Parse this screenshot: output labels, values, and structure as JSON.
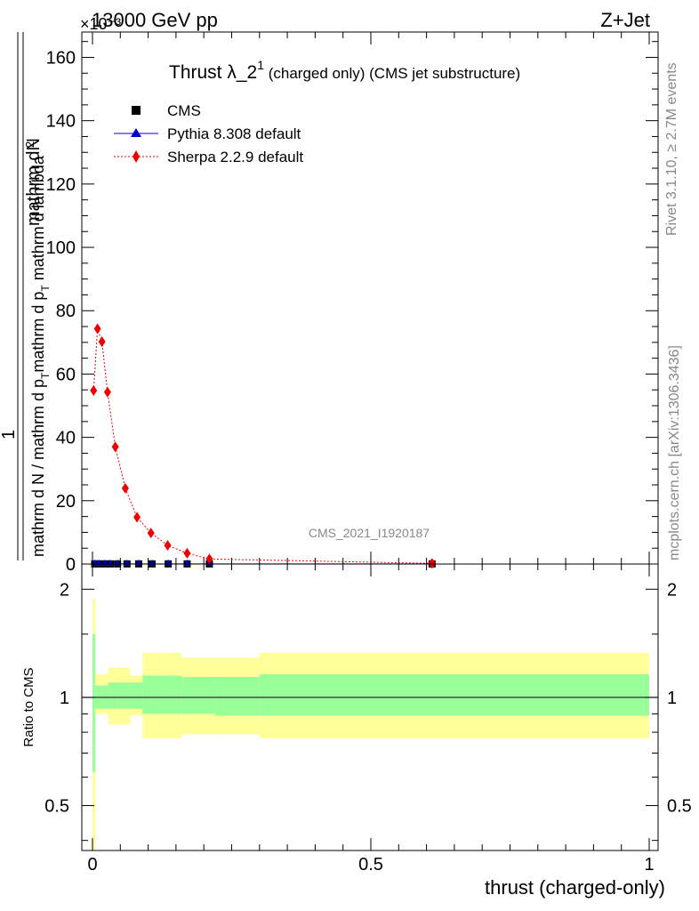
{
  "header": {
    "energy": "13000 GeV pp",
    "process": "Z+Jet",
    "exponent": "×10⁻³"
  },
  "side_labels": {
    "rivet": "Rivet 3.1.10, ≥ 2.7M events",
    "mcplots": "mcplots.cern.ch [arXiv:1306.3436]"
  },
  "watermark": "CMS_2021_I1920187",
  "colors": {
    "cms": "#000000",
    "pythia": "#0000cc",
    "sherpa": "#ee0000",
    "band_inner": "#99ff99",
    "band_outer": "#ffff99"
  },
  "chart_data": [
    {
      "type": "scatter",
      "title_main": "Thrust λ_2",
      "title_sup": "1",
      "title_rest": " (charged only) (CMS jet substructure)",
      "ylabel": "1/(mathrm d N / mathrm d p_T) · mathrm d²N / (mathrm d p_T mathrm d lambda)",
      "ylabel_numerator": "mathrm d²N",
      "ylabel_num_sup": "2",
      "ylabel_num_text": "mathrm dN",
      "ylabel_denominator": "mathrm d N / mathrm d p_T mathrm d p_T mathrm d lambda",
      "ylabel_den_parts": [
        "mathrm d N / mathrm d p",
        "T",
        "mathrm d p",
        "T",
        " mathrm d lambda"
      ],
      "ylabel_one": "1",
      "xlim": [
        0,
        1
      ],
      "ylim": [
        0,
        168
      ],
      "y_ticks": [
        0,
        20,
        40,
        60,
        80,
        100,
        120,
        140,
        160
      ],
      "legend_position": "top-left",
      "series": [
        {
          "name": "CMS",
          "marker": "square",
          "x": [
            0.004,
            0.012,
            0.022,
            0.032,
            0.045,
            0.062,
            0.083,
            0.107,
            0.136,
            0.17,
            0.21,
            0.61
          ],
          "values": [
            0.05,
            0.05,
            0.05,
            0.05,
            0.05,
            0.05,
            0.05,
            0.05,
            0.05,
            0.05,
            0.05,
            0.05
          ]
        },
        {
          "name": "Pythia 8.308 default",
          "marker": "triangle",
          "line": "solid",
          "x": [
            0.004,
            0.012,
            0.022,
            0.032,
            0.045,
            0.062,
            0.083,
            0.107,
            0.136,
            0.17,
            0.21,
            0.61
          ],
          "values": [
            0.05,
            0.05,
            0.05,
            0.05,
            0.05,
            0.05,
            0.05,
            0.05,
            0.05,
            0.05,
            0.05,
            0.05
          ]
        },
        {
          "name": "Sherpa 2.2.9 default",
          "marker": "diamond",
          "line": "dotted",
          "x": [
            0.002,
            0.009,
            0.017,
            0.027,
            0.041,
            0.059,
            0.08,
            0.105,
            0.135,
            0.17,
            0.21,
            0.61
          ],
          "values": [
            54.8,
            74.3,
            70.2,
            54.3,
            37.0,
            23.9,
            14.8,
            9.8,
            5.9,
            3.4,
            1.6,
            0.2
          ]
        }
      ]
    },
    {
      "type": "area",
      "ylabel": "Ratio to CMS",
      "xlabel": "thrust (charged-only)",
      "xlim": [
        0,
        1
      ],
      "ylim": [
        0.375,
        2.35
      ],
      "y_scale": "log",
      "x_ticks": [
        0,
        0.5,
        1
      ],
      "x_tick_labels": [
        "0",
        "0.5",
        "1"
      ],
      "y_ticks": [
        0.5,
        1,
        2
      ],
      "y_tick_labels": [
        "0.5",
        "1",
        "2"
      ],
      "reference_line": 1,
      "bins": [
        0,
        0.005,
        0.015,
        0.028,
        0.045,
        0.068,
        0.09,
        0.135,
        0.16,
        0.22,
        0.3,
        1.0
      ],
      "inner_low": [
        0.62,
        0.93,
        0.93,
        0.93,
        0.93,
        0.93,
        0.9,
        0.9,
        0.9,
        0.89,
        0.89
      ],
      "inner_high": [
        1.5,
        1.08,
        1.08,
        1.1,
        1.1,
        1.1,
        1.15,
        1.15,
        1.14,
        1.14,
        1.16
      ],
      "outer_low": [
        0.36,
        0.9,
        0.9,
        0.84,
        0.84,
        0.89,
        0.77,
        0.77,
        0.79,
        0.79,
        0.77
      ],
      "outer_high": [
        1.88,
        1.16,
        1.16,
        1.21,
        1.21,
        1.15,
        1.33,
        1.33,
        1.29,
        1.29,
        1.33
      ]
    }
  ]
}
